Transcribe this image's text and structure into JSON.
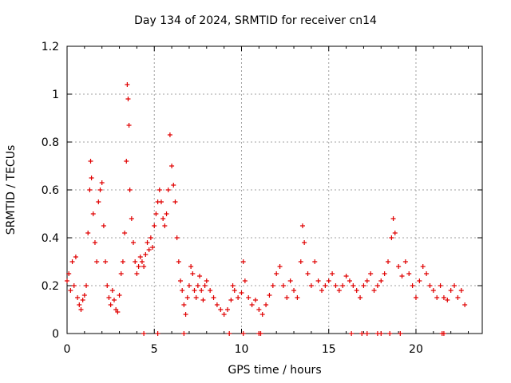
{
  "chart_data": {
    "type": "scatter",
    "title": "Day 134 of 2024, SRMTID for receiver cn14",
    "xlabel": "GPS time / hours",
    "ylabel": "SRMTID / TECUs",
    "xlim": [
      0,
      23.8
    ],
    "ylim": [
      0,
      1.2
    ],
    "xticks": [
      0,
      5,
      10,
      15,
      20
    ],
    "xtick_labels": [
      "0",
      "5",
      "10",
      "15",
      "20"
    ],
    "yticks": [
      0,
      0.2,
      0.4,
      0.6,
      0.8,
      1,
      1.2
    ],
    "ytick_labels": [
      "0",
      "0.2",
      "0.4",
      "0.6",
      "0.8",
      "1",
      "1.2"
    ],
    "grid": true,
    "marker": "+",
    "color": "#e00000",
    "series": [
      {
        "name": "SRMTID",
        "points": [
          [
            0.0,
            0.22
          ],
          [
            0.1,
            0.25
          ],
          [
            0.2,
            0.18
          ],
          [
            0.3,
            0.3
          ],
          [
            0.4,
            0.2
          ],
          [
            0.5,
            0.32
          ],
          [
            0.6,
            0.15
          ],
          [
            0.7,
            0.12
          ],
          [
            0.8,
            0.1
          ],
          [
            0.9,
            0.14
          ],
          [
            1.0,
            0.16
          ],
          [
            1.1,
            0.2
          ],
          [
            1.2,
            0.42
          ],
          [
            1.3,
            0.6
          ],
          [
            1.35,
            0.72
          ],
          [
            1.4,
            0.65
          ],
          [
            1.5,
            0.5
          ],
          [
            1.6,
            0.38
          ],
          [
            1.7,
            0.3
          ],
          [
            1.8,
            0.55
          ],
          [
            1.9,
            0.6
          ],
          [
            2.0,
            0.63
          ],
          [
            2.1,
            0.45
          ],
          [
            2.2,
            0.3
          ],
          [
            2.3,
            0.2
          ],
          [
            2.4,
            0.15
          ],
          [
            2.5,
            0.12
          ],
          [
            2.6,
            0.18
          ],
          [
            2.7,
            0.14
          ],
          [
            2.8,
            0.1
          ],
          [
            2.9,
            0.09
          ],
          [
            3.0,
            0.16
          ],
          [
            3.1,
            0.25
          ],
          [
            3.2,
            0.3
          ],
          [
            3.3,
            0.42
          ],
          [
            3.4,
            0.72
          ],
          [
            3.45,
            1.04
          ],
          [
            3.5,
            0.98
          ],
          [
            3.55,
            0.87
          ],
          [
            3.6,
            0.6
          ],
          [
            3.7,
            0.48
          ],
          [
            3.8,
            0.38
          ],
          [
            3.9,
            0.3
          ],
          [
            4.0,
            0.25
          ],
          [
            4.1,
            0.28
          ],
          [
            4.2,
            0.32
          ],
          [
            4.3,
            0.3
          ],
          [
            4.4,
            0.28
          ],
          [
            4.5,
            0.33
          ],
          [
            4.6,
            0.38
          ],
          [
            4.7,
            0.35
          ],
          [
            4.8,
            0.4
          ],
          [
            4.9,
            0.36
          ],
          [
            5.0,
            0.45
          ],
          [
            5.1,
            0.5
          ],
          [
            5.2,
            0.55
          ],
          [
            5.3,
            0.6
          ],
          [
            5.4,
            0.55
          ],
          [
            5.5,
            0.48
          ],
          [
            5.6,
            0.45
          ],
          [
            5.7,
            0.5
          ],
          [
            5.8,
            0.6
          ],
          [
            5.9,
            0.83
          ],
          [
            6.0,
            0.7
          ],
          [
            6.1,
            0.62
          ],
          [
            6.2,
            0.55
          ],
          [
            6.3,
            0.4
          ],
          [
            6.4,
            0.3
          ],
          [
            6.5,
            0.22
          ],
          [
            6.6,
            0.18
          ],
          [
            6.7,
            0.12
          ],
          [
            6.8,
            0.08
          ],
          [
            6.9,
            0.15
          ],
          [
            7.0,
            0.2
          ],
          [
            7.1,
            0.28
          ],
          [
            7.2,
            0.25
          ],
          [
            7.3,
            0.18
          ],
          [
            7.4,
            0.15
          ],
          [
            7.5,
            0.2
          ],
          [
            7.6,
            0.24
          ],
          [
            7.7,
            0.18
          ],
          [
            7.8,
            0.14
          ],
          [
            7.9,
            0.2
          ],
          [
            8.0,
            0.22
          ],
          [
            8.2,
            0.18
          ],
          [
            8.4,
            0.15
          ],
          [
            8.6,
            0.12
          ],
          [
            8.8,
            0.1
          ],
          [
            9.0,
            0.08
          ],
          [
            9.2,
            0.1
          ],
          [
            9.4,
            0.14
          ],
          [
            9.5,
            0.2
          ],
          [
            9.6,
            0.18
          ],
          [
            9.8,
            0.15
          ],
          [
            10.0,
            0.17
          ],
          [
            10.1,
            0.3
          ],
          [
            10.2,
            0.22
          ],
          [
            10.4,
            0.15
          ],
          [
            10.6,
            0.12
          ],
          [
            10.8,
            0.14
          ],
          [
            11.0,
            0.1
          ],
          [
            11.2,
            0.08
          ],
          [
            11.4,
            0.12
          ],
          [
            11.6,
            0.16
          ],
          [
            11.8,
            0.2
          ],
          [
            12.0,
            0.25
          ],
          [
            12.2,
            0.28
          ],
          [
            12.4,
            0.2
          ],
          [
            12.6,
            0.15
          ],
          [
            12.8,
            0.22
          ],
          [
            13.0,
            0.18
          ],
          [
            13.2,
            0.15
          ],
          [
            13.4,
            0.3
          ],
          [
            13.5,
            0.45
          ],
          [
            13.6,
            0.38
          ],
          [
            13.8,
            0.25
          ],
          [
            14.0,
            0.2
          ],
          [
            14.2,
            0.3
          ],
          [
            14.4,
            0.22
          ],
          [
            14.6,
            0.18
          ],
          [
            14.8,
            0.2
          ],
          [
            15.0,
            0.22
          ],
          [
            15.2,
            0.25
          ],
          [
            15.4,
            0.2
          ],
          [
            15.6,
            0.18
          ],
          [
            15.8,
            0.2
          ],
          [
            16.0,
            0.24
          ],
          [
            16.2,
            0.22
          ],
          [
            16.4,
            0.2
          ],
          [
            16.6,
            0.18
          ],
          [
            16.8,
            0.15
          ],
          [
            17.0,
            0.2
          ],
          [
            17.2,
            0.22
          ],
          [
            17.4,
            0.25
          ],
          [
            17.6,
            0.18
          ],
          [
            17.8,
            0.2
          ],
          [
            18.0,
            0.22
          ],
          [
            18.2,
            0.25
          ],
          [
            18.4,
            0.3
          ],
          [
            18.6,
            0.4
          ],
          [
            18.7,
            0.48
          ],
          [
            18.8,
            0.42
          ],
          [
            19.0,
            0.28
          ],
          [
            19.2,
            0.24
          ],
          [
            19.4,
            0.3
          ],
          [
            19.6,
            0.25
          ],
          [
            19.8,
            0.2
          ],
          [
            20.0,
            0.15
          ],
          [
            20.2,
            0.22
          ],
          [
            20.4,
            0.28
          ],
          [
            20.6,
            0.25
          ],
          [
            20.8,
            0.2
          ],
          [
            21.0,
            0.18
          ],
          [
            21.2,
            0.15
          ],
          [
            21.4,
            0.2
          ],
          [
            21.6,
            0.15
          ],
          [
            21.8,
            0.14
          ],
          [
            22.0,
            0.18
          ],
          [
            22.2,
            0.2
          ],
          [
            22.4,
            0.15
          ],
          [
            22.6,
            0.18
          ],
          [
            22.8,
            0.12
          ]
        ]
      }
    ],
    "zero_points_x": [
      4.4,
      5.2,
      6.7,
      9.3,
      10.1,
      11.0,
      11.1,
      16.3,
      16.9,
      17.2,
      17.8,
      18.0,
      18.5,
      19.1,
      21.5,
      21.6
    ]
  }
}
